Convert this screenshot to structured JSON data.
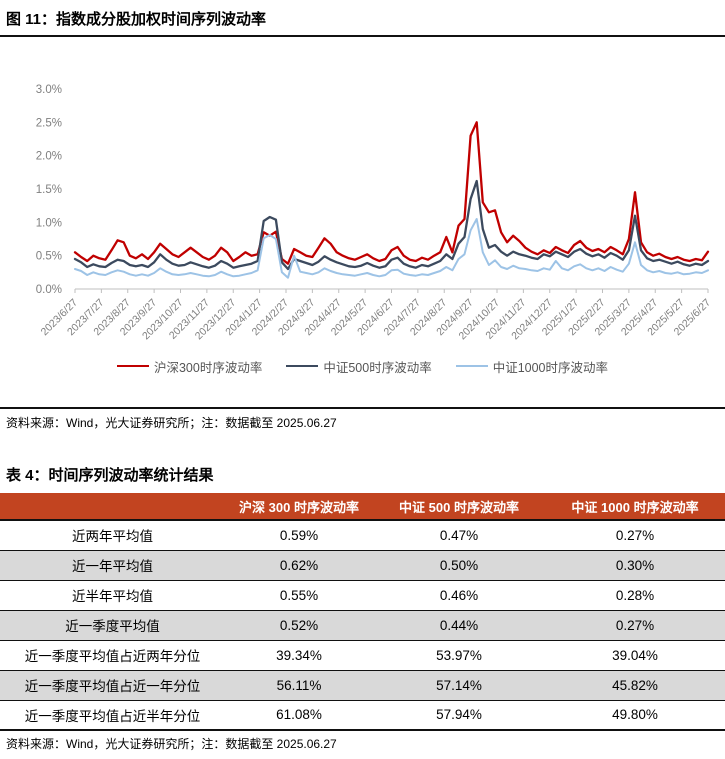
{
  "colors": {
    "hs300": "#C00000",
    "zz500": "#3C4A5E",
    "zz1000": "#9DC3E6",
    "table_header_bg": "#C24420",
    "row_alt_bg": "#D9D9D9",
    "axis_text": "#7F7F7F",
    "axis_line": "#BFBFBF"
  },
  "figure": {
    "title": "图 11：指数成分股加权时间序列波动率",
    "source_note": "资料来源：Wind，光大证券研究所；注：数据截至 2025.06.27",
    "legend": [
      {
        "label": "沪深300时序波动率",
        "color": "#C00000"
      },
      {
        "label": "中证500时序波动率",
        "color": "#3C4A5E"
      },
      {
        "label": "中证1000时序波动率",
        "color": "#9DC3E6"
      }
    ]
  },
  "chart_data": [
    {
      "type": "line",
      "title": "指数成分股加权时间序列波动率",
      "x_start": "2023/6/27",
      "x_end": "2025/6/27",
      "x_frequency": "weekly",
      "y_unit": "%",
      "ylim": [
        0,
        3.0
      ],
      "y_ticks": [
        "0.0%",
        "0.5%",
        "1.0%",
        "1.5%",
        "2.0%",
        "2.5%",
        "3.0%"
      ],
      "grid": false,
      "legend_position": "bottom",
      "x_tick_labels": [
        "2023/6/27",
        "2023/7/27",
        "2023/8/27",
        "2023/9/27",
        "2023/10/27",
        "2023/11/27",
        "2023/12/27",
        "2024/1/27",
        "2024/2/27",
        "2024/3/27",
        "2024/4/27",
        "2024/5/27",
        "2024/6/27",
        "2024/7/27",
        "2024/8/27",
        "2024/9/27",
        "2024/10/27",
        "2024/11/27",
        "2024/12/27",
        "2025/1/27",
        "2025/2/27",
        "2025/3/27",
        "2025/4/27",
        "2025/5/27",
        "2025/6/27"
      ],
      "series": [
        {
          "name": "沪深300时序波动率",
          "color": "#C00000",
          "values": [
            0.55,
            0.48,
            0.42,
            0.5,
            0.46,
            0.44,
            0.58,
            0.73,
            0.7,
            0.5,
            0.46,
            0.52,
            0.45,
            0.55,
            0.68,
            0.6,
            0.52,
            0.48,
            0.55,
            0.62,
            0.55,
            0.48,
            0.44,
            0.5,
            0.62,
            0.55,
            0.42,
            0.48,
            0.55,
            0.5,
            0.52,
            0.85,
            0.8,
            0.86,
            0.45,
            0.38,
            0.6,
            0.55,
            0.5,
            0.48,
            0.62,
            0.76,
            0.68,
            0.55,
            0.5,
            0.46,
            0.44,
            0.48,
            0.52,
            0.46,
            0.42,
            0.45,
            0.58,
            0.63,
            0.5,
            0.44,
            0.42,
            0.47,
            0.44,
            0.5,
            0.55,
            0.78,
            0.55,
            0.95,
            1.05,
            2.3,
            2.5,
            1.3,
            1.15,
            1.18,
            0.85,
            0.7,
            0.8,
            0.72,
            0.62,
            0.56,
            0.52,
            0.58,
            0.54,
            0.63,
            0.58,
            0.54,
            0.66,
            0.72,
            0.62,
            0.57,
            0.6,
            0.55,
            0.63,
            0.58,
            0.52,
            0.75,
            1.45,
            0.7,
            0.55,
            0.5,
            0.53,
            0.48,
            0.45,
            0.48,
            0.44,
            0.42,
            0.45,
            0.43,
            0.56
          ]
        },
        {
          "name": "中证500时序波动率",
          "color": "#3C4A5E",
          "values": [
            0.45,
            0.4,
            0.33,
            0.37,
            0.34,
            0.33,
            0.39,
            0.44,
            0.42,
            0.36,
            0.34,
            0.36,
            0.33,
            0.4,
            0.52,
            0.44,
            0.38,
            0.35,
            0.36,
            0.4,
            0.37,
            0.34,
            0.32,
            0.35,
            0.42,
            0.38,
            0.32,
            0.34,
            0.36,
            0.38,
            0.42,
            1.02,
            1.08,
            1.04,
            0.4,
            0.3,
            0.45,
            0.42,
            0.39,
            0.36,
            0.41,
            0.49,
            0.44,
            0.4,
            0.37,
            0.34,
            0.33,
            0.35,
            0.39,
            0.35,
            0.32,
            0.34,
            0.44,
            0.47,
            0.38,
            0.34,
            0.32,
            0.36,
            0.34,
            0.38,
            0.42,
            0.52,
            0.45,
            0.68,
            0.78,
            1.35,
            1.62,
            0.9,
            0.62,
            0.66,
            0.56,
            0.5,
            0.56,
            0.52,
            0.5,
            0.47,
            0.45,
            0.52,
            0.49,
            0.56,
            0.52,
            0.48,
            0.56,
            0.6,
            0.53,
            0.49,
            0.52,
            0.47,
            0.54,
            0.5,
            0.44,
            0.58,
            1.1,
            0.58,
            0.46,
            0.42,
            0.44,
            0.41,
            0.38,
            0.41,
            0.37,
            0.35,
            0.38,
            0.36,
            0.42
          ]
        },
        {
          "name": "中证1000时序波动率",
          "color": "#9DC3E6",
          "values": [
            0.3,
            0.27,
            0.21,
            0.25,
            0.22,
            0.21,
            0.25,
            0.28,
            0.26,
            0.22,
            0.2,
            0.22,
            0.2,
            0.24,
            0.31,
            0.26,
            0.22,
            0.21,
            0.22,
            0.24,
            0.22,
            0.2,
            0.19,
            0.21,
            0.26,
            0.22,
            0.19,
            0.2,
            0.22,
            0.24,
            0.28,
            0.76,
            0.81,
            0.75,
            0.25,
            0.17,
            0.5,
            0.26,
            0.24,
            0.22,
            0.25,
            0.31,
            0.27,
            0.24,
            0.22,
            0.21,
            0.2,
            0.22,
            0.24,
            0.21,
            0.19,
            0.21,
            0.28,
            0.29,
            0.23,
            0.21,
            0.2,
            0.22,
            0.21,
            0.24,
            0.27,
            0.33,
            0.28,
            0.45,
            0.52,
            0.88,
            1.05,
            0.55,
            0.36,
            0.43,
            0.33,
            0.3,
            0.35,
            0.31,
            0.3,
            0.28,
            0.27,
            0.31,
            0.29,
            0.42,
            0.31,
            0.28,
            0.34,
            0.37,
            0.31,
            0.28,
            0.31,
            0.27,
            0.33,
            0.29,
            0.26,
            0.38,
            0.7,
            0.36,
            0.28,
            0.25,
            0.27,
            0.24,
            0.23,
            0.25,
            0.22,
            0.23,
            0.25,
            0.24,
            0.28
          ]
        }
      ]
    },
    {
      "type": "table",
      "title": "时间序列波动率统计结果",
      "columns": [
        "",
        "沪深 300 时序波动率",
        "中证 500 时序波动率",
        "中证 1000 时序波动率"
      ],
      "rows": [
        [
          "近两年平均值",
          "0.59%",
          "0.47%",
          "0.27%"
        ],
        [
          "近一年平均值",
          "0.62%",
          "0.50%",
          "0.30%"
        ],
        [
          "近半年平均值",
          "0.55%",
          "0.46%",
          "0.28%"
        ],
        [
          "近一季度平均值",
          "0.52%",
          "0.44%",
          "0.27%"
        ],
        [
          "近一季度平均值占近两年分位",
          "39.34%",
          "53.97%",
          "39.04%"
        ],
        [
          "近一季度平均值占近一年分位",
          "56.11%",
          "57.14%",
          "45.82%"
        ],
        [
          "近一季度平均值占近半年分位",
          "61.08%",
          "57.94%",
          "49.80%"
        ]
      ]
    }
  ],
  "table": {
    "title": "表 4：时间序列波动率统计结果",
    "source_note": "资料来源：Wind，光大证券研究所；注：数据截至 2025.06.27"
  }
}
